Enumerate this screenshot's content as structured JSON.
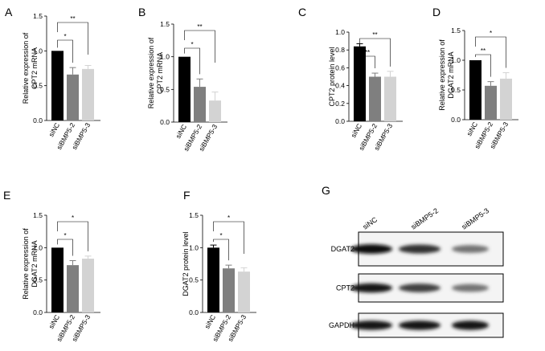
{
  "chart_data": [
    {
      "panel": "A",
      "type": "bar",
      "ylabel": [
        "Relative expression of",
        "CPT2 mRNA"
      ],
      "categories": [
        "siNC",
        "siBMP5-2",
        "siBMP5-3"
      ],
      "values": [
        1.0,
        0.66,
        0.74
      ],
      "errors": [
        0.0,
        0.1,
        0.05
      ],
      "colors": [
        "#000000",
        "#7f7f7f",
        "#d3d3d3"
      ],
      "ylim": [
        0,
        1.5
      ],
      "yticks": [
        "0.0",
        "0.5",
        "1.0",
        "1.5"
      ],
      "significance": [
        {
          "from": 0,
          "to": 1,
          "label": "*"
        },
        {
          "from": 0,
          "to": 2,
          "label": "**"
        }
      ]
    },
    {
      "panel": "B",
      "type": "bar",
      "ylabel": [
        "Relative expression of",
        "CPT2 mRNA"
      ],
      "categories": [
        "siNC",
        "siBMP5-2",
        "siBMP5-3"
      ],
      "values": [
        1.0,
        0.54,
        0.33
      ],
      "errors": [
        0.0,
        0.12,
        0.13
      ],
      "colors": [
        "#000000",
        "#7f7f7f",
        "#d3d3d3"
      ],
      "ylim": [
        0,
        1.5
      ],
      "yticks": [
        "0.0",
        "0.5",
        "1.0",
        "1.5"
      ],
      "significance": [
        {
          "from": 0,
          "to": 1,
          "label": "*"
        },
        {
          "from": 0,
          "to": 2,
          "label": "**"
        }
      ]
    },
    {
      "panel": "C",
      "type": "bar",
      "ylabel": [
        "CPT2 protein level"
      ],
      "categories": [
        "siNC",
        "siBMP5-2",
        "siBMP5-3"
      ],
      "values": [
        0.84,
        0.5,
        0.5
      ],
      "errors": [
        0.03,
        0.04,
        0.06
      ],
      "colors": [
        "#000000",
        "#7f7f7f",
        "#d3d3d3"
      ],
      "ylim": [
        0,
        1.0
      ],
      "yticks": [
        "0.0",
        "0.2",
        "0.4",
        "0.6",
        "0.8",
        "1.0"
      ],
      "significance": [
        {
          "from": 0,
          "to": 1,
          "label": "**"
        },
        {
          "from": 0,
          "to": 2,
          "label": "**"
        }
      ]
    },
    {
      "panel": "D",
      "type": "bar",
      "ylabel": [
        "Relative expression of",
        "DGAT2 mRNA"
      ],
      "categories": [
        "siNC",
        "siBMP5-2",
        "siBMP5-3"
      ],
      "values": [
        1.0,
        0.57,
        0.69
      ],
      "errors": [
        0.0,
        0.07,
        0.1
      ],
      "colors": [
        "#000000",
        "#7f7f7f",
        "#d3d3d3"
      ],
      "ylim": [
        0,
        1.5
      ],
      "yticks": [
        "0.0",
        "0.5",
        "1.0",
        "1.5"
      ],
      "significance": [
        {
          "from": 0,
          "to": 1,
          "label": "**"
        },
        {
          "from": 0,
          "to": 2,
          "label": "*"
        }
      ]
    },
    {
      "panel": "E",
      "type": "bar",
      "ylabel": [
        "Relative expression of",
        "DGAT2 mRNA"
      ],
      "categories": [
        "siNC",
        "siBMP5-2",
        "siBMP5-3"
      ],
      "values": [
        1.0,
        0.73,
        0.83
      ],
      "errors": [
        0.0,
        0.07,
        0.04
      ],
      "colors": [
        "#000000",
        "#7f7f7f",
        "#d3d3d3"
      ],
      "ylim": [
        0,
        1.5
      ],
      "yticks": [
        "0.0",
        "0.5",
        "1.0",
        "1.5"
      ],
      "significance": [
        {
          "from": 0,
          "to": 1,
          "label": "*"
        },
        {
          "from": 0,
          "to": 2,
          "label": "*"
        }
      ]
    },
    {
      "panel": "F",
      "type": "bar",
      "ylabel": [
        "DGAT2 protein level"
      ],
      "categories": [
        "siNC",
        "siBMP5-2",
        "siBMP5-3"
      ],
      "values": [
        1.0,
        0.68,
        0.63
      ],
      "errors": [
        0.04,
        0.05,
        0.06
      ],
      "colors": [
        "#000000",
        "#7f7f7f",
        "#d3d3d3"
      ],
      "ylim": [
        0,
        1.5
      ],
      "yticks": [
        "0.0",
        "0.5",
        "1.0",
        "1.5"
      ],
      "significance": [
        {
          "from": 0,
          "to": 1,
          "label": "*"
        },
        {
          "from": 0,
          "to": 2,
          "label": "*"
        }
      ]
    }
  ],
  "blot": {
    "panel": "G",
    "lanes": [
      "siNC",
      "siBMP5-2",
      "siBMP5-3"
    ],
    "rows": [
      {
        "label": "DGAT2",
        "intensities": [
          0.95,
          0.8,
          0.55
        ]
      },
      {
        "label": "CPT2",
        "intensities": [
          0.9,
          0.75,
          0.55
        ]
      },
      {
        "label": "GAPDH",
        "intensities": [
          0.9,
          0.9,
          0.9
        ]
      }
    ]
  }
}
